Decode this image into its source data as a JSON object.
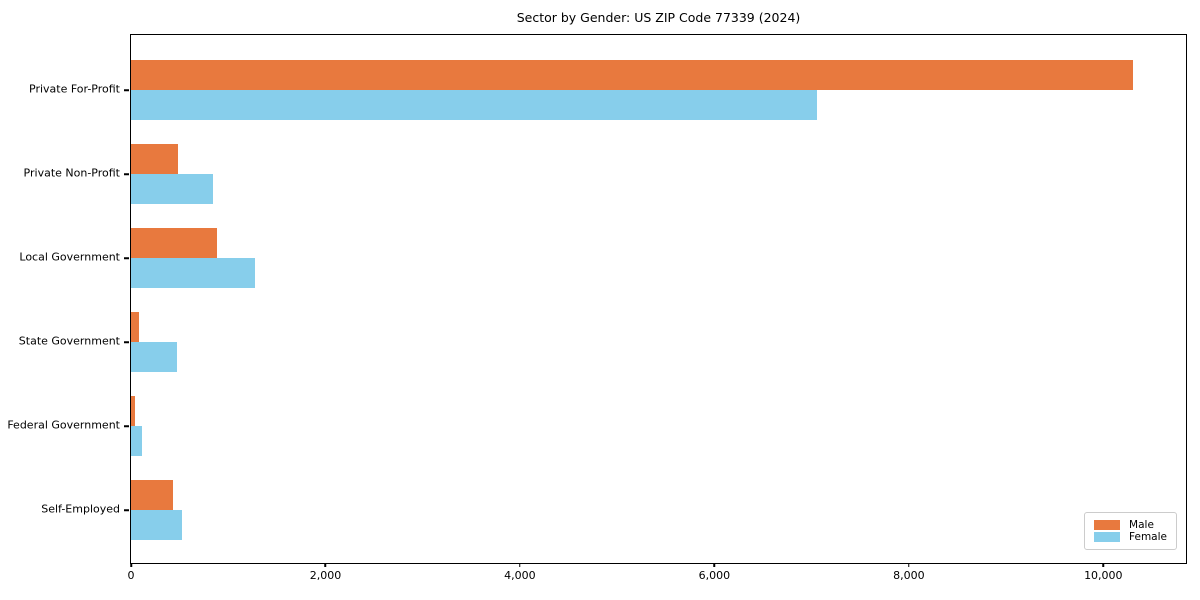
{
  "chart_data": {
    "type": "bar",
    "orientation": "horizontal",
    "title": "Sector by Gender: US ZIP Code 77339 (2024)",
    "categories": [
      "Private For-Profit",
      "Private Non-Profit",
      "Local Government",
      "State Government",
      "Federal Government",
      "Self-Employed"
    ],
    "series": [
      {
        "name": "Male",
        "color": "#e8793e",
        "values": [
          10310,
          485,
          880,
          80,
          45,
          430
        ]
      },
      {
        "name": "Female",
        "color": "#87ceeb",
        "values": [
          7055,
          845,
          1280,
          470,
          110,
          525
        ]
      }
    ],
    "xlabel": "",
    "ylabel": "",
    "xlim": [
      0,
      10840
    ],
    "xticks": {
      "values": [
        0,
        2000,
        4000,
        6000,
        8000,
        10000
      ],
      "labels": [
        "0",
        "2,000",
        "4,000",
        "6,000",
        "8,000",
        "10,000"
      ]
    },
    "grid": false,
    "legend": {
      "position": "lower right"
    },
    "colors": {
      "spine": "#000000",
      "legend_border": "#cccccc",
      "background": "#ffffff"
    }
  }
}
